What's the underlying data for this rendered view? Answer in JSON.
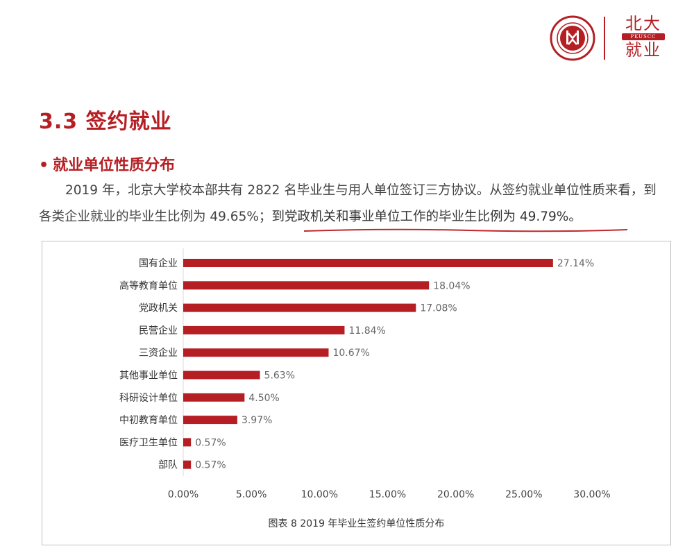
{
  "header": {
    "logo_line1": "北大",
    "logo_line2": "PKUSCC",
    "logo_line3": "就业",
    "seal_icon": "peking-university-seal-icon",
    "brand_color": "#b51f24"
  },
  "section_title": "3.3 签约就业",
  "sub_title": {
    "bullet": "•",
    "text": "就业单位性质分布"
  },
  "paragraph": {
    "part1": "2019 年，北京大学校本部共有 2822 名毕业生与用人单位签订三方协议。从签约就业单位性质来看，到各类企业就业的毕业生比例为 49.65%；",
    "part2": "到党政机关和事业单位工作的毕业生比例为 49.79%。"
  },
  "chart_data": {
    "type": "bar",
    "orientation": "horizontal",
    "categories": [
      "国有企业",
      "高等教育单位",
      "党政机关",
      "民营企业",
      "三资企业",
      "其他事业单位",
      "科研设计单位",
      "中初教育单位",
      "医疗卫生单位",
      "部队"
    ],
    "values": [
      27.14,
      18.04,
      17.08,
      11.84,
      10.67,
      5.63,
      4.5,
      3.97,
      0.57,
      0.57
    ],
    "value_labels": [
      "27.14%",
      "18.04%",
      "17.08%",
      "11.84%",
      "10.67%",
      "5.63%",
      "4.50%",
      "3.97%",
      "0.57%",
      "0.57%"
    ],
    "xlim": [
      0,
      30
    ],
    "x_ticks": [
      "0.00%",
      "5.00%",
      "10.00%",
      "15.00%",
      "20.00%",
      "25.00%",
      "30.00%"
    ],
    "bar_color": "#b51f24",
    "grid": false,
    "caption": "图表 8  2019 年毕业生签约单位性质分布"
  }
}
